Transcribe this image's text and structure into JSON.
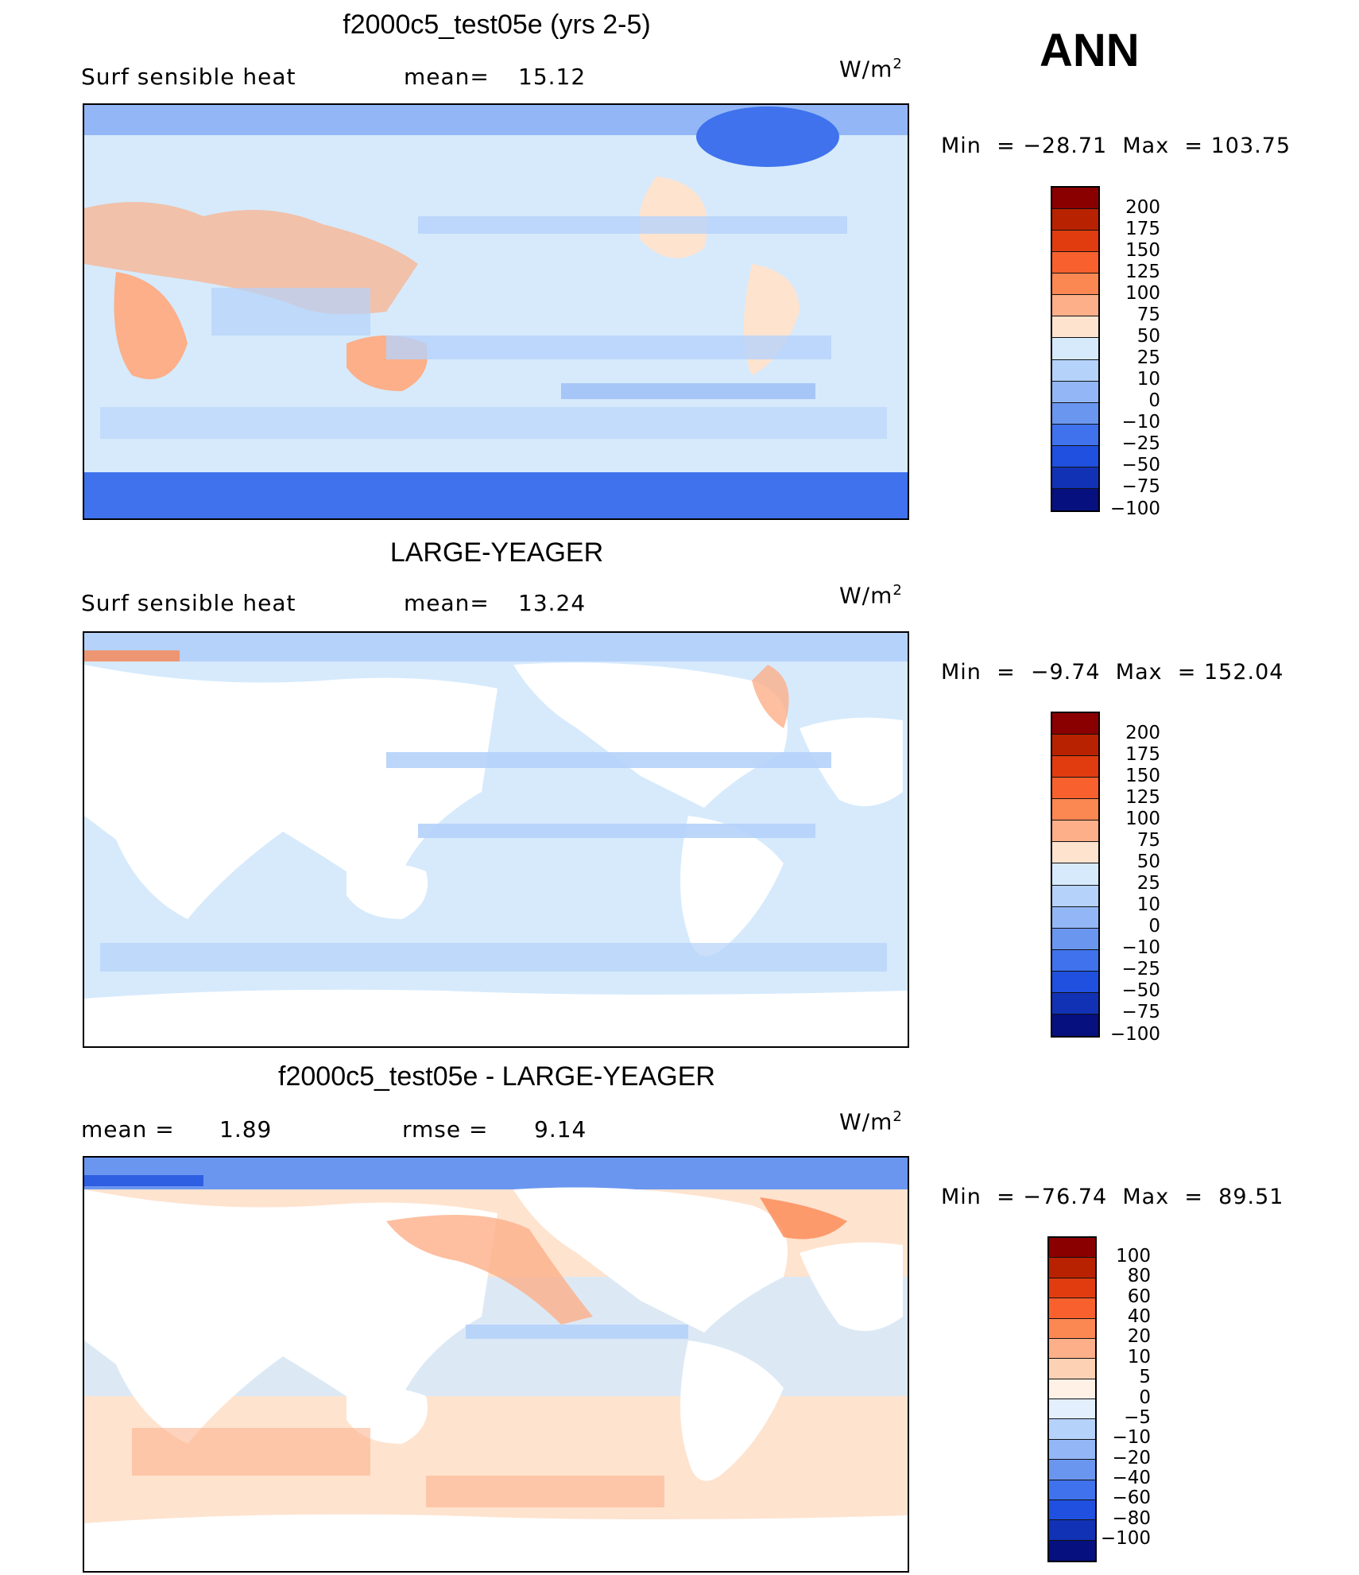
{
  "season": "ANN",
  "units": {
    "base": "W/m",
    "exp": "2"
  },
  "chart_data": [
    {
      "type": "heatmap",
      "title": "f2000c5_test05e (yrs 2-5)",
      "variable": "Surf  sensible heat",
      "mean_label": "mean=",
      "mean": "15.12",
      "min_label": "Min  =",
      "min": "−28.71",
      "max_label": "Max  =",
      "max": "103.75",
      "colorbar_levels": [
        "200",
        "175",
        "150",
        "125",
        "100",
        "75",
        "50",
        "25",
        "10",
        "0",
        "−10",
        "−25",
        "−50",
        "−75",
        "−100"
      ],
      "colorbar_colors": [
        "#8a0000",
        "#b92200",
        "#e03c10",
        "#f8612d",
        "#fb8753",
        "#fcaf88",
        "#fee3cf",
        "#d6eafc",
        "#b5d2fa",
        "#93b7f6",
        "#6a96ef",
        "#3f72ec",
        "#1f50df",
        "#1232b5",
        "#06107f"
      ]
    },
    {
      "type": "heatmap",
      "title": "LARGE-YEAGER",
      "variable": "Surf  sensible heat",
      "mean_label": "mean=",
      "mean": "13.24",
      "min_label": "Min  =",
      "min": "−9.74",
      "max_label": "Max  =",
      "max": "152.04",
      "colorbar_levels": [
        "200",
        "175",
        "150",
        "125",
        "100",
        "75",
        "50",
        "25",
        "10",
        "0",
        "−10",
        "−25",
        "−50",
        "−75",
        "−100"
      ],
      "colorbar_colors": [
        "#8a0000",
        "#b92200",
        "#e03c10",
        "#f8612d",
        "#fb8753",
        "#fcaf88",
        "#fee3cf",
        "#d6eafc",
        "#b5d2fa",
        "#93b7f6",
        "#6a96ef",
        "#3f72ec",
        "#1f50df",
        "#1232b5",
        "#06107f"
      ]
    },
    {
      "type": "heatmap",
      "title": "f2000c5_test05e - LARGE-YEAGER",
      "mean_label": "mean  =",
      "mean": "1.89",
      "rmse_label": "rmse  =",
      "rmse": "9.14",
      "min_label": "Min  =",
      "min": "−76.74",
      "max_label": "Max  =",
      "max": "89.51",
      "colorbar_levels": [
        "100",
        "80",
        "60",
        "40",
        "20",
        "10",
        "5",
        "0",
        "−5",
        "−10",
        "−20",
        "−40",
        "−60",
        "−80",
        "−100"
      ],
      "colorbar_colors": [
        "#8a0000",
        "#b92200",
        "#e03c10",
        "#f8612d",
        "#fb8753",
        "#fcaf88",
        "#fdd1b4",
        "#fff1e6",
        "#e3effc",
        "#b5d2fa",
        "#93b7f6",
        "#6a96ef",
        "#3f72ec",
        "#1f50df",
        "#1232b5",
        "#06107f"
      ]
    }
  ]
}
